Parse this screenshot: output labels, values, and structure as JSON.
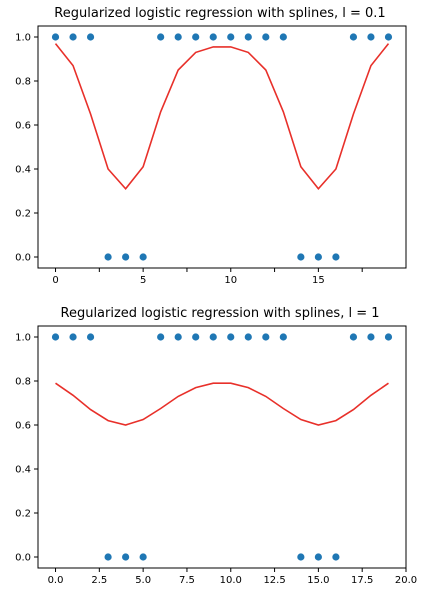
{
  "colors": {
    "points": "#1f77b4",
    "curve": "#e8302a",
    "axes": "#000000"
  },
  "chart_data": [
    {
      "type": "scatter",
      "title": "Regularized logistic regression with splines, l = 0.1",
      "xlabel": "",
      "ylabel": "",
      "xlim": [
        -1,
        20
      ],
      "ylim": [
        -0.05,
        1.05
      ],
      "xticks": [
        0.0,
        2.5,
        5.0,
        7.5,
        10.0,
        12.5,
        15.0,
        17.5
      ],
      "xtick_labels": [
        "0",
        "5",
        "10",
        "15"
      ],
      "xtick_label_values": [
        0,
        5,
        10,
        15
      ],
      "yticks": [
        0.0,
        0.2,
        0.4,
        0.6,
        0.8,
        1.0
      ],
      "ytick_labels": [
        "0.0",
        "0.2",
        "0.4",
        "0.6",
        "0.8",
        "1.0"
      ],
      "grid": false,
      "points": {
        "x": [
          0,
          1,
          2,
          3,
          4,
          5,
          6,
          7,
          8,
          9,
          10,
          11,
          12,
          13,
          14,
          15,
          16,
          17,
          18,
          19
        ],
        "y": [
          1,
          1,
          1,
          0,
          0,
          0,
          1,
          1,
          1,
          1,
          1,
          1,
          1,
          1,
          0,
          0,
          0,
          1,
          1,
          1
        ]
      },
      "curve": {
        "x": [
          0,
          1,
          2,
          3,
          4,
          5,
          6,
          7,
          8,
          9,
          10,
          11,
          12,
          13,
          14,
          15,
          16,
          17,
          18,
          19
        ],
        "y": [
          0.97,
          0.87,
          0.65,
          0.4,
          0.31,
          0.41,
          0.66,
          0.85,
          0.93,
          0.955,
          0.955,
          0.93,
          0.85,
          0.66,
          0.41,
          0.31,
          0.4,
          0.65,
          0.87,
          0.97
        ]
      }
    },
    {
      "type": "scatter",
      "title": "Regularized logistic regression with splines, l = 1",
      "xlabel": "",
      "ylabel": "",
      "xlim": [
        -1,
        20
      ],
      "ylim": [
        -0.05,
        1.05
      ],
      "xticks": [
        0.0,
        2.5,
        5.0,
        7.5,
        10.0,
        12.5,
        15.0,
        17.5,
        20.0
      ],
      "xtick_labels": [
        "0.0",
        "2.5",
        "5.0",
        "7.5",
        "10.0",
        "12.5",
        "15.0",
        "17.5",
        "20.0"
      ],
      "xtick_label_values": [
        0.0,
        2.5,
        5.0,
        7.5,
        10.0,
        12.5,
        15.0,
        17.5,
        20.0
      ],
      "yticks": [
        0.0,
        0.2,
        0.4,
        0.6,
        0.8,
        1.0
      ],
      "ytick_labels": [
        "0.0",
        "0.2",
        "0.4",
        "0.6",
        "0.8",
        "1.0"
      ],
      "grid": false,
      "points": {
        "x": [
          0,
          1,
          2,
          3,
          4,
          5,
          6,
          7,
          8,
          9,
          10,
          11,
          12,
          13,
          14,
          15,
          16,
          17,
          18,
          19
        ],
        "y": [
          1,
          1,
          1,
          0,
          0,
          0,
          1,
          1,
          1,
          1,
          1,
          1,
          1,
          1,
          0,
          0,
          0,
          1,
          1,
          1
        ]
      },
      "curve": {
        "x": [
          0,
          1,
          2,
          3,
          4,
          5,
          6,
          7,
          8,
          9,
          10,
          11,
          12,
          13,
          14,
          15,
          16,
          17,
          18,
          19
        ],
        "y": [
          0.79,
          0.735,
          0.67,
          0.62,
          0.6,
          0.625,
          0.675,
          0.73,
          0.77,
          0.79,
          0.79,
          0.77,
          0.73,
          0.675,
          0.625,
          0.6,
          0.62,
          0.67,
          0.735,
          0.79
        ]
      }
    }
  ]
}
